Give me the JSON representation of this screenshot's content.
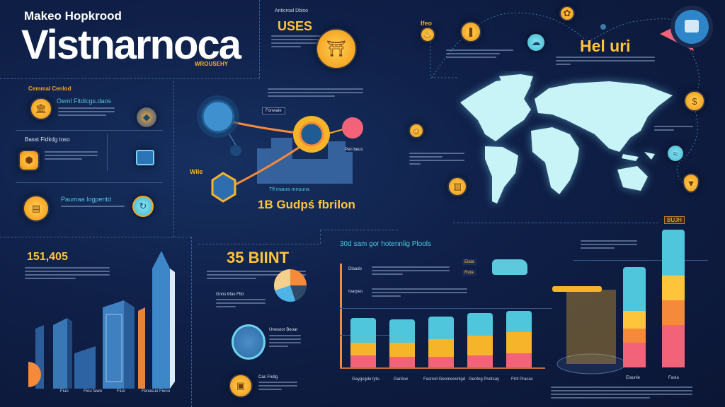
{
  "header": {
    "subtitle": "Makeo Hopkrood",
    "title": "Vistnarnoca",
    "tagline": "WROUSEHY"
  },
  "uses": {
    "kicker": "Anticroal Dbiso",
    "title": "USES"
  },
  "left_panel": {
    "section_title": "Cemmal Cenlod",
    "items": [
      {
        "title": "Oeml Fitdicgs.daos",
        "icon": "temple-icon"
      },
      {
        "title": "Basst Fidkdg toso",
        "icon": "hexagon-building-icon"
      },
      {
        "title": "Paumaa Iogpentd",
        "icon": "treasure-icon"
      }
    ]
  },
  "flow": {
    "node_label": "Fonwaie",
    "side_label": "Pen beus",
    "corner_label": "Wile",
    "caption": "Tff maura mnouna",
    "headline": "1B Gudpś fbrilon"
  },
  "map_section": {
    "corner_label": "Ifeo",
    "title": "Hel uri"
  },
  "buildings_section": {
    "stat": "151,405",
    "labels": [
      "Fiuo",
      "Flou fawo",
      "Fiuo",
      "Fenasuo Fieno"
    ]
  },
  "mid_section": {
    "stat": "35 BIINT",
    "pie_label": "Gnns bfas Ffid",
    "item2_label": "Unesoor Beoar",
    "item3_label": "Cas Fndig"
  },
  "chart_section": {
    "title": "30d sam gor hotennlig Plools",
    "row_labels": [
      "Dlaado",
      "Ioarpeo"
    ],
    "legend": [
      "Elata",
      "Ruta"
    ],
    "top_badge": "BUJH",
    "bar_labels": [
      "Gaygsgde tytu",
      "Ganlsw",
      "Fasnnd Geomeosnlgd",
      "Geotng Pnotsay",
      "Ftrit Pracas",
      "Elaunie",
      "Fasla"
    ]
  },
  "colors": {
    "background": "#0f1f47",
    "accent_yellow": "#ffc53a",
    "accent_orange": "#f58a3a",
    "accent_cyan": "#4fc6dc",
    "map": "#c8f3f7",
    "pink": "#f2637a"
  }
}
